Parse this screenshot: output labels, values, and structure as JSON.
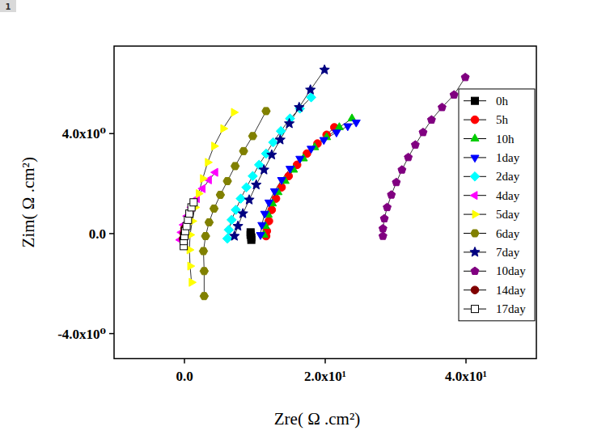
{
  "chart_data": {
    "type": "scatter",
    "panel_label": "1",
    "x_label": "Zre( Ω .cm²)",
    "y_label": "Zim( Ω .cm²)",
    "xlim": [
      -10,
      50
    ],
    "ylim": [
      -5,
      7.5
    ],
    "xticks": [
      {
        "value": 0,
        "label": "0.0"
      },
      {
        "value": 20,
        "label": "2.0x10¹"
      },
      {
        "value": 40,
        "label": "4.0x10¹"
      }
    ],
    "yticks": [
      {
        "value": -4,
        "label": "-4.0x10⁰"
      },
      {
        "value": 0,
        "label": "0.0"
      },
      {
        "value": 4,
        "label": "4.0x10⁰"
      }
    ],
    "grid": false,
    "legend": "upper right",
    "line_style": "solid",
    "series": [
      {
        "name": "0h",
        "color": "#000000",
        "marker": "square",
        "x": [
          9.4,
          9.4,
          9.5,
          9.5
        ],
        "values": [
          0.05,
          -0.05,
          -0.15,
          -0.25
        ]
      },
      {
        "name": "5h",
        "color": "#ff0000",
        "marker": "circle",
        "x": [
          11.6,
          11.7,
          12.0,
          12.4,
          13.0,
          13.8,
          14.8,
          16.0,
          17.4,
          18.9,
          20.2,
          21.3
        ],
        "values": [
          -0.1,
          0.1,
          0.5,
          0.95,
          1.4,
          1.85,
          2.3,
          2.75,
          3.2,
          3.6,
          3.95,
          4.25
        ]
      },
      {
        "name": "10h",
        "color": "#00cc00",
        "marker": "triangle-up",
        "x": [
          11.3,
          11.5,
          11.9,
          12.5,
          13.3,
          14.3,
          15.5,
          16.9,
          18.5,
          20.2,
          22.0,
          23.8
        ],
        "values": [
          -0.05,
          0.3,
          0.75,
          1.2,
          1.65,
          2.1,
          2.55,
          3.0,
          3.45,
          3.85,
          4.25,
          4.6
        ]
      },
      {
        "name": "1day",
        "color": "#0000ff",
        "marker": "triangle-down",
        "x": [
          10.8,
          11.0,
          11.4,
          12.0,
          12.8,
          13.8,
          15.0,
          16.4,
          18.0,
          19.8,
          21.6,
          23.2,
          24.4
        ],
        "values": [
          -0.05,
          0.35,
          0.8,
          1.25,
          1.7,
          2.15,
          2.6,
          3.0,
          3.4,
          3.75,
          4.05,
          4.3,
          4.45
        ]
      },
      {
        "name": "2day",
        "color": "#00ffff",
        "marker": "diamond",
        "x": [
          6.1,
          6.3,
          6.7,
          7.3,
          8.0,
          8.8,
          9.7,
          10.6,
          11.6,
          12.6,
          13.7,
          15.0,
          16.4,
          18.0
        ],
        "values": [
          -0.2,
          0.15,
          0.55,
          0.95,
          1.4,
          1.85,
          2.3,
          2.75,
          3.2,
          3.65,
          4.1,
          4.6,
          5.0,
          5.45
        ]
      },
      {
        "name": "4day",
        "color": "#ff00ff",
        "marker": "triangle-left",
        "x": [
          -0.6,
          -0.4,
          -0.1,
          0.4,
          1.0,
          1.8,
          2.6,
          3.5,
          4.4
        ],
        "values": [
          -0.25,
          0.05,
          0.35,
          0.7,
          1.05,
          1.4,
          1.8,
          2.15,
          2.45
        ]
      },
      {
        "name": "5day",
        "color": "#ffff00",
        "marker": "triangle-right",
        "x": [
          1.0,
          0.8,
          0.7,
          0.8,
          1.1,
          1.5,
          2.0,
          2.6,
          3.3,
          4.2,
          5.5,
          7.0
        ],
        "values": [
          -1.95,
          -1.3,
          -0.65,
          -0.05,
          0.5,
          1.05,
          1.6,
          2.2,
          2.85,
          3.5,
          4.2,
          4.85
        ]
      },
      {
        "name": "6day",
        "color": "#808000",
        "marker": "hexagon",
        "x": [
          2.8,
          2.8,
          2.7,
          3.0,
          3.5,
          4.2,
          5.1,
          6.1,
          7.2,
          8.4,
          9.7,
          11.6
        ],
        "values": [
          -2.5,
          -1.5,
          -0.7,
          -0.1,
          0.45,
          1.0,
          1.55,
          2.1,
          2.7,
          3.3,
          3.9,
          4.9
        ]
      },
      {
        "name": "7day",
        "color": "#000080",
        "marker": "star",
        "x": [
          7.1,
          7.6,
          8.3,
          9.2,
          10.2,
          11.3,
          12.4,
          13.6,
          14.9,
          16.3,
          17.9,
          19.9
        ],
        "values": [
          -0.1,
          0.3,
          0.8,
          1.35,
          1.95,
          2.55,
          3.15,
          3.75,
          4.4,
          5.05,
          5.75,
          6.55
        ]
      },
      {
        "name": "10day",
        "color": "#800080",
        "marker": "pentagon",
        "x": [
          28.2,
          28.2,
          28.4,
          28.8,
          29.4,
          30.1,
          30.9,
          31.8,
          32.8,
          33.9,
          35.1,
          36.6,
          38.3,
          39.9
        ],
        "values": [
          -0.1,
          0.2,
          0.6,
          1.05,
          1.55,
          2.05,
          2.55,
          3.05,
          3.55,
          4.05,
          4.55,
          5.05,
          5.55,
          6.25
        ]
      },
      {
        "name": "14day",
        "color": "#800000",
        "marker": "circle",
        "x": [
          -0.2,
          -0.1,
          0.0
        ],
        "values": [
          -0.2,
          0.0,
          0.2
        ]
      },
      {
        "name": "17day",
        "color": "#000000",
        "marker": "open-square",
        "x": [
          -0.1,
          -0.1,
          0.0,
          0.1,
          0.3,
          0.5,
          0.7,
          1.0,
          1.3
        ],
        "values": [
          -0.5,
          -0.3,
          -0.1,
          0.1,
          0.3,
          0.55,
          0.8,
          1.05,
          1.25
        ]
      }
    ]
  }
}
